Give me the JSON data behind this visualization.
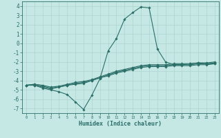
{
  "xlabel": "Humidex (Indice chaleur)",
  "ylabel": "",
  "xlim": [
    -0.5,
    23.5
  ],
  "ylim": [
    -7.5,
    4.5
  ],
  "xticks": [
    0,
    1,
    2,
    3,
    4,
    5,
    6,
    7,
    8,
    9,
    10,
    11,
    12,
    13,
    14,
    15,
    16,
    17,
    18,
    19,
    20,
    21,
    22,
    23
  ],
  "yticks": [
    -7,
    -6,
    -5,
    -4,
    -3,
    -2,
    -1,
    0,
    1,
    2,
    3,
    4
  ],
  "bg_color": "#c5e8e5",
  "line_color": "#2a6e68",
  "grid_color": "#afd5d0",
  "lines": [
    {
      "x": [
        0,
        1,
        2,
        3,
        4,
        5,
        6,
        7,
        8,
        9,
        10,
        11,
        12,
        13,
        14,
        15,
        16,
        17,
        18,
        19,
        20,
        21,
        22,
        23
      ],
      "y": [
        -4.5,
        -4.5,
        -4.8,
        -5.0,
        -5.2,
        -5.5,
        -6.3,
        -7.1,
        -5.6,
        -3.8,
        -0.8,
        0.5,
        2.6,
        3.3,
        3.9,
        3.8,
        -0.6,
        -2.0,
        -2.3,
        -2.3,
        -2.2,
        -2.1,
        -2.2,
        -2.2
      ]
    },
    {
      "x": [
        0,
        1,
        2,
        3,
        4,
        5,
        6,
        7,
        8,
        9,
        10,
        11,
        12,
        13,
        14,
        15,
        16,
        17,
        18,
        19,
        20,
        21,
        22,
        23
      ],
      "y": [
        -4.5,
        -4.5,
        -4.7,
        -4.9,
        -4.7,
        -4.5,
        -4.4,
        -4.3,
        -4.0,
        -3.7,
        -3.5,
        -3.2,
        -3.0,
        -2.8,
        -2.6,
        -2.5,
        -2.5,
        -2.5,
        -2.4,
        -2.4,
        -2.4,
        -2.3,
        -2.3,
        -2.2
      ]
    },
    {
      "x": [
        0,
        1,
        2,
        3,
        4,
        5,
        6,
        7,
        8,
        9,
        10,
        11,
        12,
        13,
        14,
        15,
        16,
        17,
        18,
        19,
        20,
        21,
        22,
        23
      ],
      "y": [
        -4.5,
        -4.4,
        -4.6,
        -4.8,
        -4.7,
        -4.5,
        -4.3,
        -4.2,
        -4.0,
        -3.7,
        -3.4,
        -3.1,
        -2.9,
        -2.7,
        -2.5,
        -2.4,
        -2.4,
        -2.4,
        -2.3,
        -2.3,
        -2.3,
        -2.2,
        -2.2,
        -2.1
      ]
    },
    {
      "x": [
        0,
        1,
        2,
        3,
        4,
        5,
        6,
        7,
        8,
        9,
        10,
        11,
        12,
        13,
        14,
        15,
        16,
        17,
        18,
        19,
        20,
        21,
        22,
        23
      ],
      "y": [
        -4.5,
        -4.4,
        -4.5,
        -4.7,
        -4.6,
        -4.4,
        -4.2,
        -4.1,
        -3.9,
        -3.6,
        -3.3,
        -3.0,
        -2.8,
        -2.6,
        -2.4,
        -2.3,
        -2.3,
        -2.3,
        -2.2,
        -2.2,
        -2.2,
        -2.1,
        -2.1,
        -2.0
      ]
    }
  ]
}
